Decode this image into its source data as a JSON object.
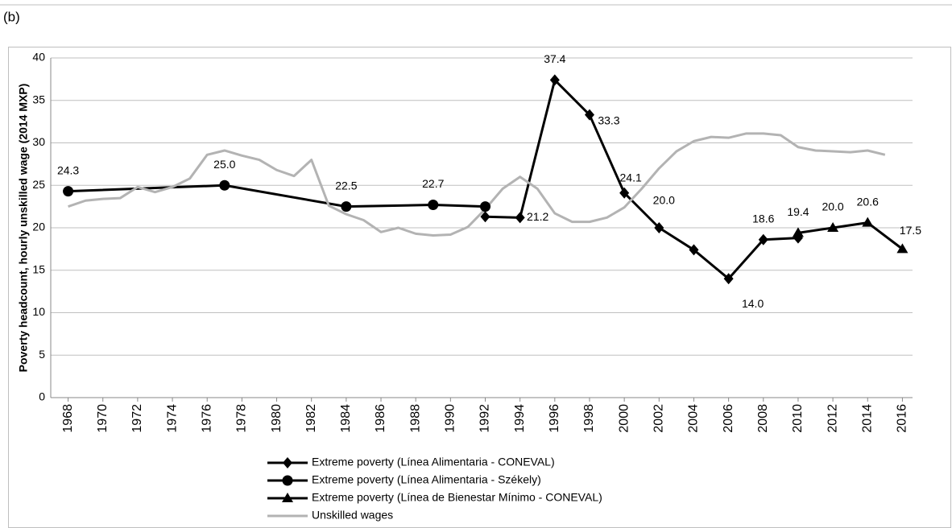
{
  "panel_label": "(b)",
  "chart_data": {
    "type": "line",
    "ylabel": "Poverty headcount, hourly unskilled wage (2014 MXP)",
    "xlim": [
      1967,
      2017
    ],
    "xticks": [
      1968,
      1970,
      1972,
      1974,
      1976,
      1978,
      1980,
      1982,
      1984,
      1986,
      1988,
      1990,
      1992,
      1994,
      1996,
      1998,
      2000,
      2002,
      2004,
      2006,
      2008,
      2010,
      2012,
      2014,
      2016
    ],
    "ylim": [
      0,
      40
    ],
    "yticks": [
      0,
      5,
      10,
      15,
      20,
      25,
      30,
      35,
      40
    ],
    "grid": true,
    "legend": "bottom",
    "series": [
      {
        "name": "Extreme poverty (Línea Alimentaria - CONEVAL)",
        "color": "#000000",
        "marker": "diamond",
        "x": [
          1992,
          1994,
          1996,
          1998,
          2000,
          2002,
          2004,
          2006,
          2008,
          2010
        ],
        "values": [
          21.3,
          21.2,
          37.4,
          33.3,
          24.1,
          20.0,
          17.4,
          14.0,
          18.6,
          18.8
        ],
        "value_labels": [
          null,
          "21.2",
          "37.4",
          "33.3",
          "24.1",
          "20.0",
          null,
          "14.0",
          "18.6",
          null
        ]
      },
      {
        "name": "Extreme poverty (Línea Alimentaria - Székely)",
        "color": "#000000",
        "marker": "circle",
        "x": [
          1968,
          1977,
          1984,
          1989,
          1992
        ],
        "values": [
          24.3,
          25.0,
          22.5,
          22.7,
          22.5
        ],
        "value_labels": [
          "24.3",
          "25.0",
          "22.5",
          "22.7",
          null
        ]
      },
      {
        "name": "Extreme poverty (Línea de Bienestar Mínimo - CONEVAL)",
        "color": "#000000",
        "marker": "triangle",
        "x": [
          2010,
          2012,
          2014,
          2016
        ],
        "values": [
          19.4,
          20.0,
          20.6,
          17.5
        ],
        "value_labels": [
          "19.4",
          "20.0",
          "20.6",
          "17.5"
        ]
      },
      {
        "name": "Unskilled wages",
        "color": "#b3b3b3",
        "marker": "none",
        "x": [
          1968,
          1969,
          1970,
          1971,
          1972,
          1973,
          1974,
          1975,
          1976,
          1977,
          1978,
          1979,
          1980,
          1981,
          1982,
          1983,
          1984,
          1985,
          1986,
          1987,
          1988,
          1989,
          1990,
          1991,
          1992,
          1993,
          1994,
          1995,
          1996,
          1997,
          1998,
          1999,
          2000,
          2001,
          2002,
          2003,
          2004,
          2005,
          2006,
          2007,
          2008,
          2009,
          2010,
          2011,
          2012,
          2013,
          2014,
          2015
        ],
        "values": [
          22.5,
          23.2,
          23.4,
          23.5,
          24.8,
          24.2,
          24.8,
          25.8,
          28.6,
          29.1,
          28.5,
          28.0,
          26.8,
          26.1,
          28.0,
          22.6,
          21.6,
          20.9,
          19.5,
          20.0,
          19.3,
          19.1,
          19.2,
          20.1,
          22.2,
          24.6,
          26.0,
          24.6,
          21.7,
          20.7,
          20.7,
          21.2,
          22.4,
          24.6,
          27.0,
          29.0,
          30.2,
          30.7,
          30.6,
          31.1,
          31.1,
          30.9,
          29.5,
          29.1,
          29.0,
          28.9,
          29.1,
          28.6
        ]
      }
    ]
  }
}
